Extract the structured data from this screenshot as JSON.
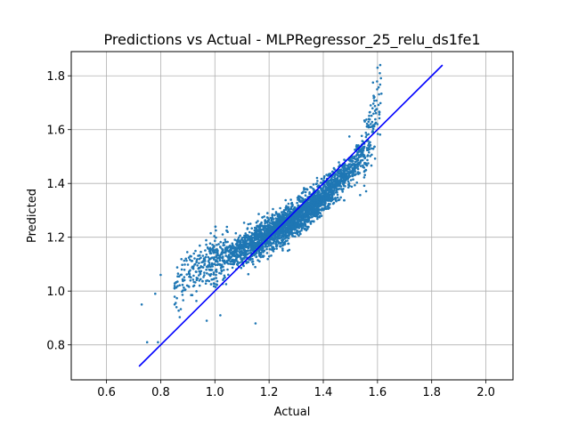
{
  "chart_data": {
    "type": "scatter",
    "title": "Predictions vs Actual - MLPRegressor_25_relu_ds1fe1",
    "xlabel": "Actual",
    "ylabel": "Predicted",
    "xlim": [
      0.47,
      2.1
    ],
    "ylim": [
      0.67,
      1.89
    ],
    "xticks": [
      "0.6",
      "0.8",
      "1.0",
      "1.2",
      "1.4",
      "1.6",
      "1.8",
      "2.0"
    ],
    "yticks": [
      "0.8",
      "1.0",
      "1.2",
      "1.4",
      "1.6",
      "1.8"
    ],
    "grid": true,
    "legend": "none",
    "colors": {
      "points": "#1f77b4",
      "identity_line": "#0000ff"
    },
    "identity_line": {
      "x": [
        0.72,
        1.84
      ],
      "y": [
        0.72,
        1.84
      ]
    },
    "trend": [
      {
        "x": 0.8,
        "y": 0.99
      },
      {
        "x": 0.9,
        "y": 1.06
      },
      {
        "x": 1.0,
        "y": 1.11
      },
      {
        "x": 1.1,
        "y": 1.15
      },
      {
        "x": 1.2,
        "y": 1.21
      },
      {
        "x": 1.3,
        "y": 1.27
      },
      {
        "x": 1.4,
        "y": 1.35
      },
      {
        "x": 1.5,
        "y": 1.45
      },
      {
        "x": 1.55,
        "y": 1.52
      },
      {
        "x": 1.6,
        "y": 1.62
      },
      {
        "x": 1.62,
        "y": 1.72
      }
    ],
    "outliers": [
      {
        "x": 0.73,
        "y": 0.95
      },
      {
        "x": 0.75,
        "y": 0.81
      },
      {
        "x": 0.79,
        "y": 0.81
      },
      {
        "x": 0.78,
        "y": 0.99
      },
      {
        "x": 0.8,
        "y": 1.06
      },
      {
        "x": 1.15,
        "y": 0.88
      },
      {
        "x": 1.02,
        "y": 0.91
      },
      {
        "x": 0.97,
        "y": 0.89
      },
      {
        "x": 1.61,
        "y": 1.84
      },
      {
        "x": 1.6,
        "y": 1.83
      }
    ]
  }
}
